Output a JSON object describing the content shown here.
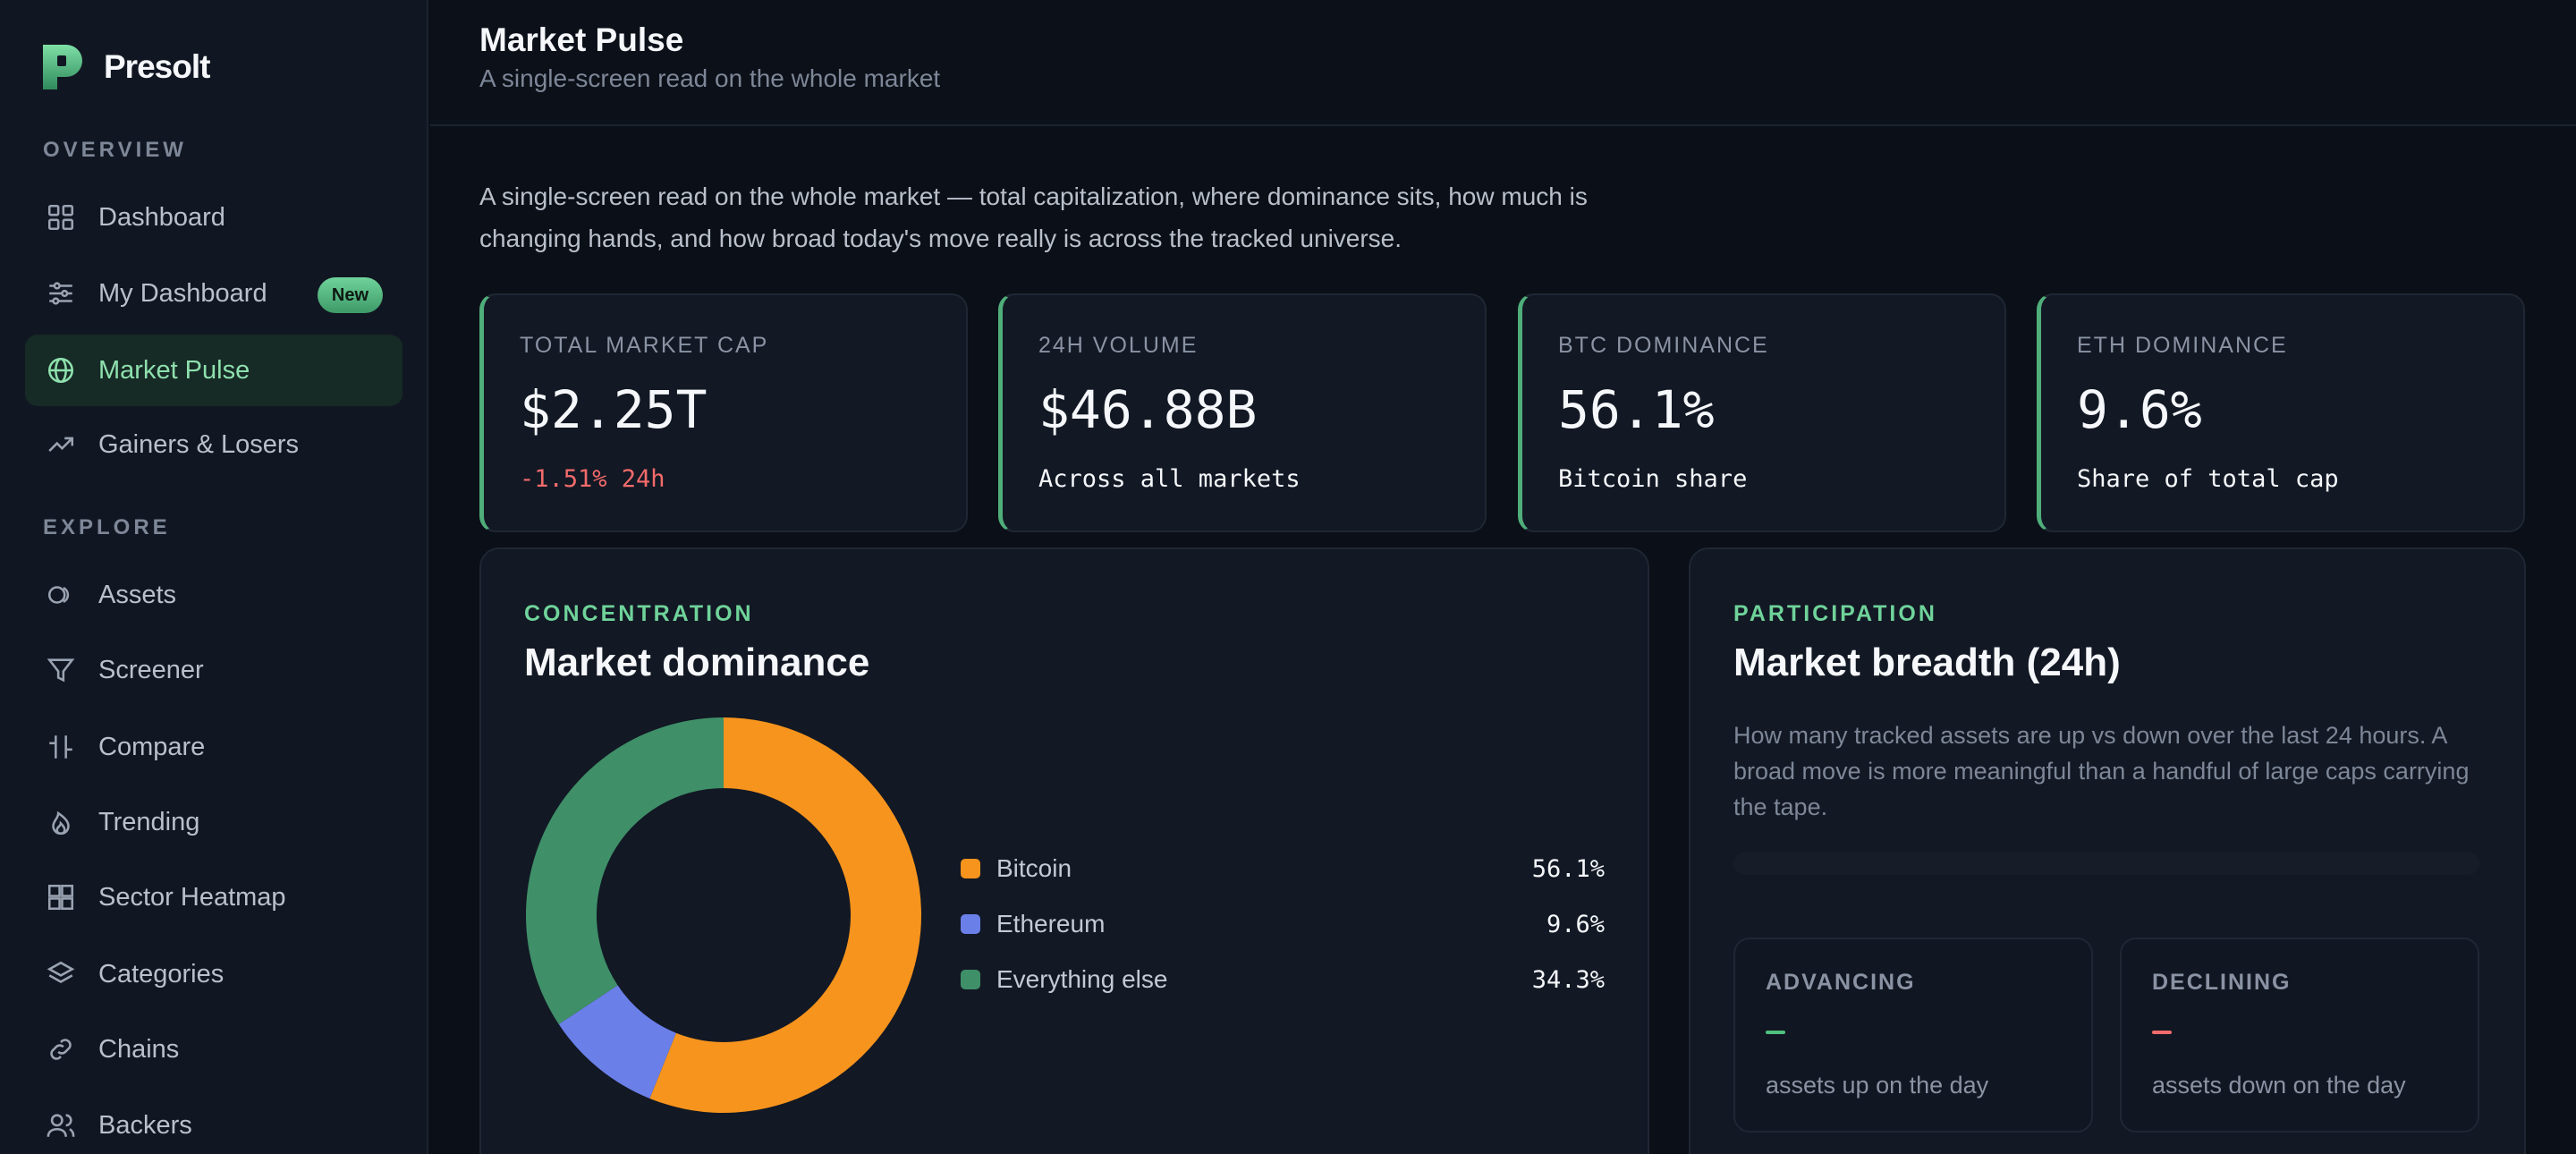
{
  "brand": {
    "name": "Presolt"
  },
  "sidebar": {
    "sections": [
      {
        "label": "OVERVIEW"
      },
      {
        "label": "EXPLORE"
      }
    ],
    "items": [
      {
        "label": "Dashboard",
        "icon": "grid-icon"
      },
      {
        "label": "My Dashboard",
        "icon": "sliders-icon",
        "badge": "New"
      },
      {
        "label": "Market Pulse",
        "icon": "globe-icon",
        "active": true
      },
      {
        "label": "Gainers & Losers",
        "icon": "trend-up-icon"
      },
      {
        "label": "Assets",
        "icon": "coins-icon"
      },
      {
        "label": "Screener",
        "icon": "filter-icon"
      },
      {
        "label": "Compare",
        "icon": "compare-icon"
      },
      {
        "label": "Trending",
        "icon": "flame-icon"
      },
      {
        "label": "Sector Heatmap",
        "icon": "heatmap-icon"
      },
      {
        "label": "Categories",
        "icon": "layers-icon"
      },
      {
        "label": "Chains",
        "icon": "link-icon"
      },
      {
        "label": "Backers",
        "icon": "users-icon"
      }
    ]
  },
  "header": {
    "title": "Market Pulse",
    "subtitle": "A single-screen read on the whole market"
  },
  "intro": "A single-screen read on the whole market — total capitalization, where dominance sits, how much is changing hands, and how broad today's move really is across the tracked universe.",
  "kpis": [
    {
      "label": "TOTAL MARKET CAP",
      "value": "$2.25T",
      "sub": "-1.51% 24h"
    },
    {
      "label": "24H VOLUME",
      "value": "$46.88B",
      "sub": "Across all markets"
    },
    {
      "label": "BTC DOMINANCE",
      "value": "56.1%",
      "sub": "Bitcoin share"
    },
    {
      "label": "ETH DOMINANCE",
      "value": "9.6%",
      "sub": "Share of total cap"
    }
  ],
  "dominance": {
    "eyebrow": "CONCENTRATION",
    "title": "Market dominance"
  },
  "chart_data": {
    "type": "pie",
    "categories": [
      "Bitcoin",
      "Ethereum",
      "Everything else"
    ],
    "values": [
      56.1,
      9.6,
      34.3
    ],
    "labels": [
      "56.1%",
      "9.6%",
      "34.3%"
    ],
    "colors": [
      "#f7941d",
      "#6b7fe8",
      "#3f8f68"
    ],
    "donut": true
  },
  "breadth": {
    "eyebrow": "PARTICIPATION",
    "title": "Market breadth (24h)",
    "description": "How many tracked assets are up vs down over the last 24 hours. A broad move is more meaningful than a handful of large caps carrying the tape.",
    "advancing": {
      "label": "ADVANCING",
      "value": "—",
      "caption": "assets up on the day",
      "color": "#4fc27d"
    },
    "declining": {
      "label": "DECLINING",
      "value": "—",
      "caption": "assets down on the day",
      "color": "#f26b6b"
    }
  }
}
